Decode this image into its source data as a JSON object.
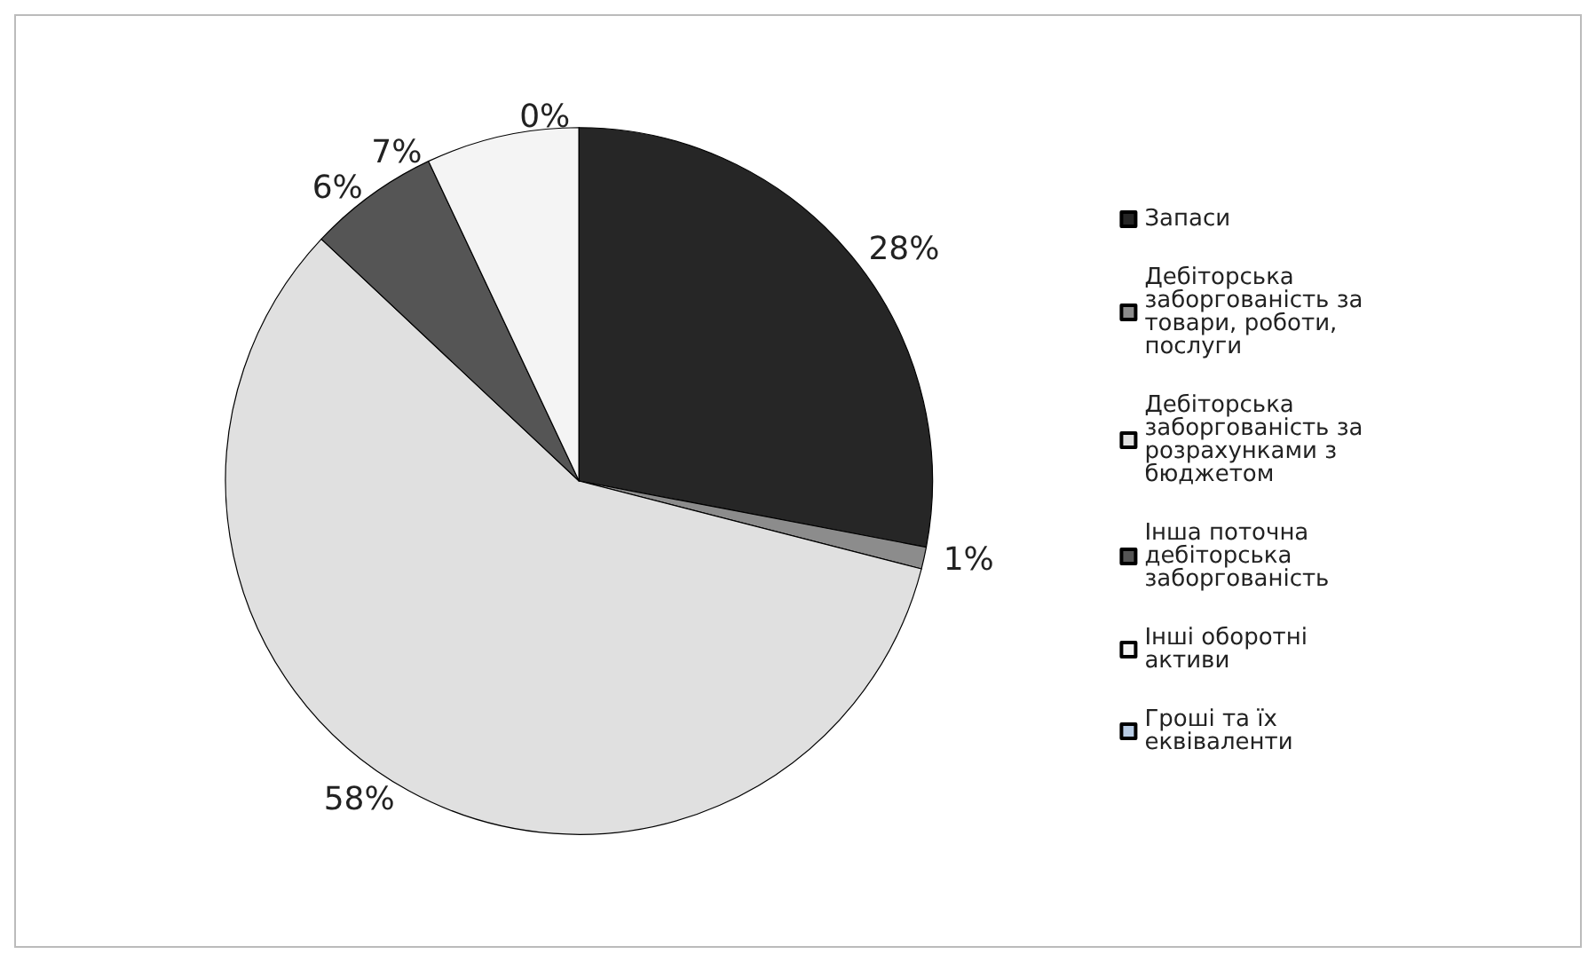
{
  "chart_data": {
    "type": "pie",
    "categories": [
      "Запаси",
      "Дебіторська заборгованість за товари, роботи, послуги",
      "Дебіторська заборгованість за розрахунками з бюджетом",
      "Інша поточна дебіторська заборгованість",
      "Інші оборотні активи",
      "Гроші та їх еквіваленти"
    ],
    "values": [
      28,
      1,
      58,
      6,
      7,
      0
    ],
    "colors": [
      "#262626",
      "#8c8c8c",
      "#e0e0e0",
      "#555555",
      "#f4f4f4",
      "#b8cce4"
    ],
    "value_labels": [
      "28%",
      "1%",
      "58%",
      "6%",
      "7%",
      "0%"
    ],
    "legend": "right"
  }
}
